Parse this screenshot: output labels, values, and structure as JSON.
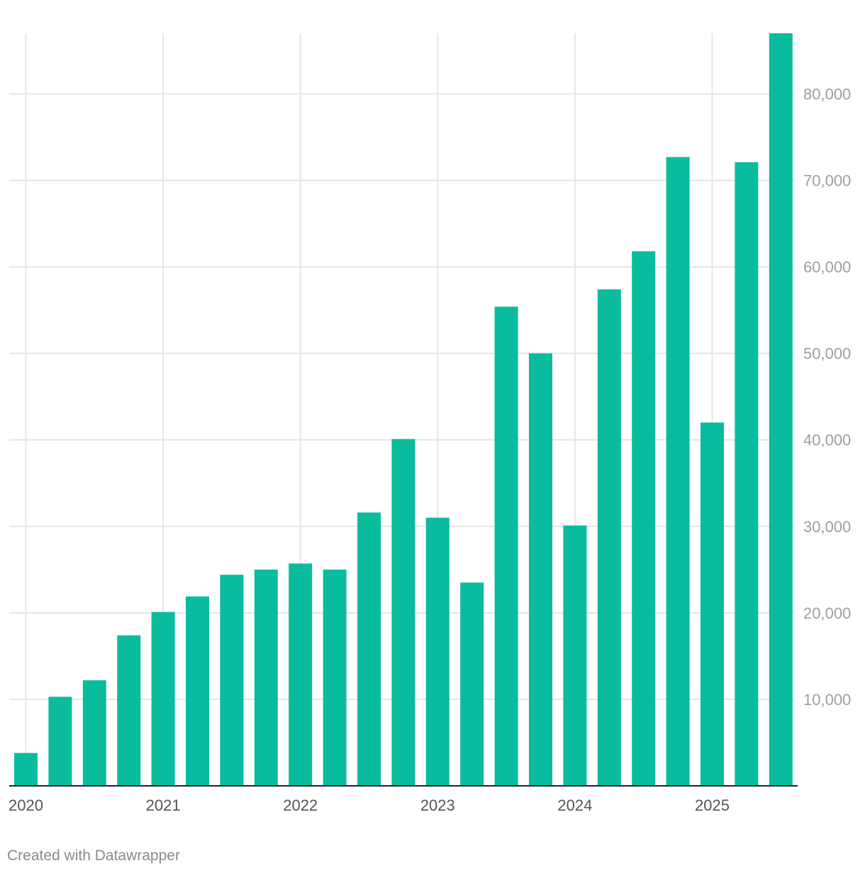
{
  "chart_data": {
    "type": "bar",
    "title": "",
    "xlabel": "",
    "ylabel": "",
    "categories": [
      "2020 Q1",
      "2020 Q2",
      "2020 Q3",
      "2020 Q4",
      "2021 Q1",
      "2021 Q2",
      "2021 Q3",
      "2021 Q4",
      "2022 Q1",
      "2022 Q2",
      "2022 Q3",
      "2022 Q4",
      "2023 Q1",
      "2023 Q2",
      "2023 Q3",
      "2023 Q4",
      "2024 Q1",
      "2024 Q2",
      "2024 Q3",
      "2024 Q4",
      "2025 Q1",
      "2025 Q2",
      "2025 Q3"
    ],
    "values": [
      3800,
      10300,
      12200,
      17400,
      20100,
      21900,
      24400,
      25000,
      25700,
      25000,
      31600,
      40100,
      31000,
      23500,
      55400,
      50000,
      30100,
      57400,
      61800,
      72700,
      42000,
      72100,
      87000
    ],
    "x_tick_labels": [
      "2020",
      "2021",
      "2022",
      "2023",
      "2024",
      "2025"
    ],
    "y_tick_labels": [
      "10,000",
      "20,000",
      "30,000",
      "40,000",
      "50,000",
      "60,000",
      "70,000",
      "80,000"
    ],
    "y_ticks": [
      10000,
      20000,
      30000,
      40000,
      50000,
      60000,
      70000,
      80000
    ],
    "ylim": [
      0,
      87000
    ],
    "y_axis_position": "right",
    "grid": true,
    "colors": {
      "bar": "#0abc9e",
      "grid": "#e5e5e5",
      "tick_text": "#9e9e9e",
      "x_tick_text": "#555555",
      "baseline": "#222222"
    }
  },
  "footer": {
    "credit": "Created with Datawrapper"
  }
}
